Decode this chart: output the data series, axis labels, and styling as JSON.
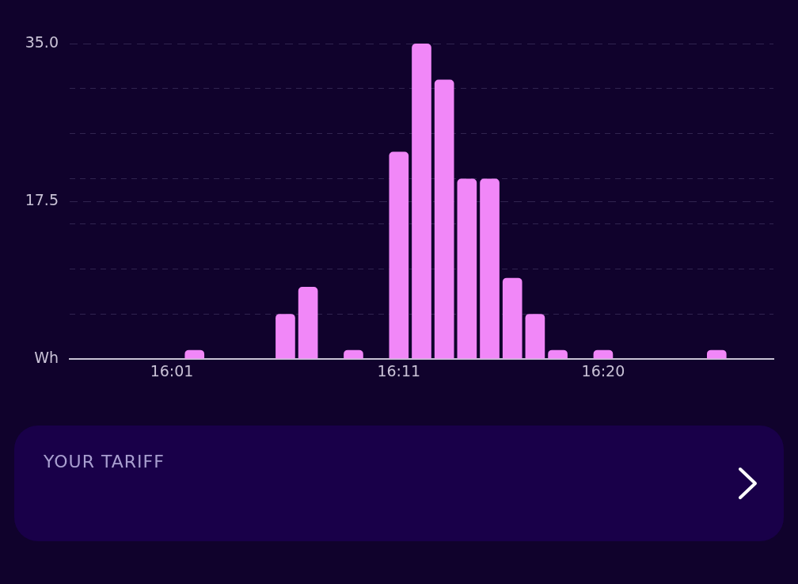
{
  "chart_data": {
    "type": "bar",
    "categories": [
      null,
      null,
      null,
      null,
      "16:01",
      null,
      null,
      null,
      null,
      null,
      null,
      null,
      null,
      null,
      "16:11",
      null,
      null,
      null,
      null,
      null,
      null,
      null,
      null,
      "16:20",
      null,
      null,
      null,
      null,
      null,
      null,
      null
    ],
    "values": [
      null,
      null,
      null,
      null,
      null,
      1,
      null,
      null,
      null,
      5,
      8,
      null,
      1,
      null,
      23,
      35,
      31,
      20,
      20,
      9,
      5,
      1,
      null,
      1,
      null,
      null,
      null,
      null,
      1,
      null,
      null
    ],
    "color": "#f187f8",
    "ylim": [
      0,
      35
    ],
    "yticks": [
      {
        "value": 0,
        "label": "Wh"
      },
      {
        "value": 5,
        "label": null
      },
      {
        "value": 10,
        "label": null
      },
      {
        "value": 15,
        "label": null
      },
      17.5,
      {
        "value": 20,
        "label": null
      },
      {
        "value": 25,
        "label": null
      },
      {
        "value": 30,
        "label": null
      },
      {
        "value": 35,
        "label": "35.0"
      }
    ],
    "grid": "y",
    "annotations": [
      "YOUR TARIFF"
    ]
  }
}
